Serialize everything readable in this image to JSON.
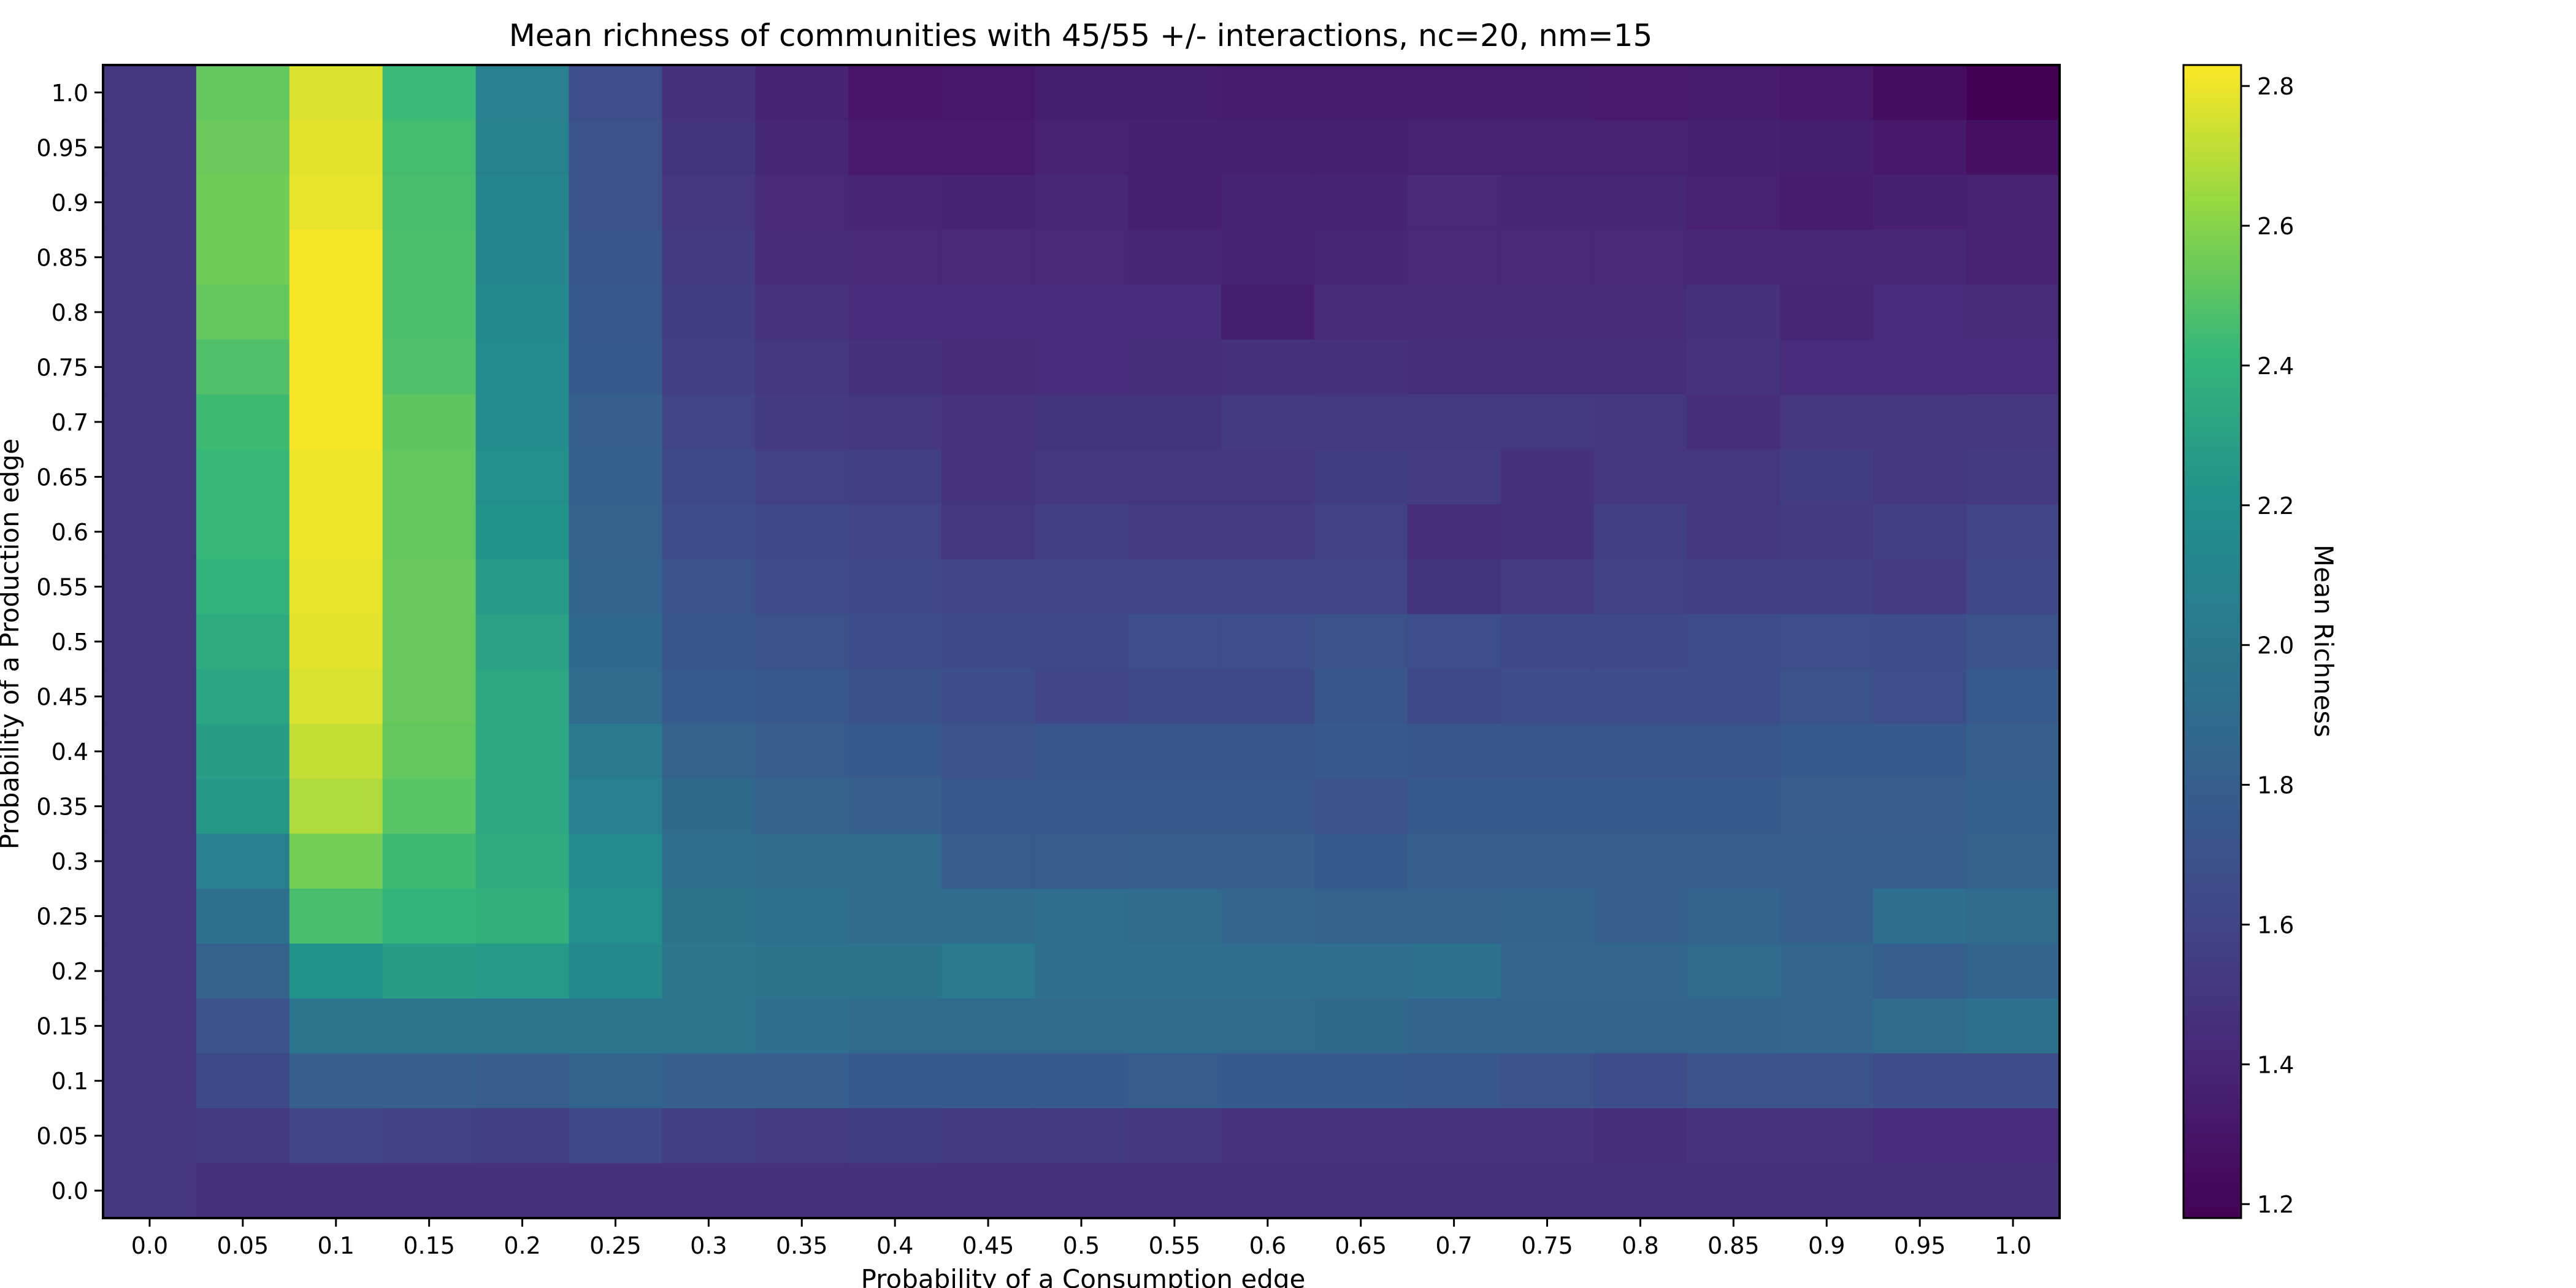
{
  "chart_data": {
    "type": "heatmap",
    "title": "Mean richness of communities with 45/55 +/- interactions, nc=20, nm=15",
    "xlabel": "Probability of a Consumption edge",
    "ylabel": "Probability of a Production edge",
    "x_categories": [
      "0.0",
      "0.05",
      "0.1",
      "0.15",
      "0.2",
      "0.25",
      "0.3",
      "0.35",
      "0.4",
      "0.45",
      "0.5",
      "0.55",
      "0.6",
      "0.65",
      "0.7",
      "0.75",
      "0.8",
      "0.85",
      "0.9",
      "0.95",
      "1.0"
    ],
    "y_categories": [
      "1.0",
      "0.95",
      "0.9",
      "0.85",
      "0.8",
      "0.75",
      "0.7",
      "0.65",
      "0.6",
      "0.55",
      "0.5",
      "0.45",
      "0.4",
      "0.35",
      "0.3",
      "0.25",
      "0.2",
      "0.15",
      "0.1",
      "0.05",
      "0.0"
    ],
    "values": [
      [
        1.5,
        2.52,
        2.77,
        2.43,
        2.06,
        1.68,
        1.47,
        1.38,
        1.3,
        1.31,
        1.35,
        1.35,
        1.34,
        1.34,
        1.34,
        1.34,
        1.33,
        1.34,
        1.31,
        1.25,
        1.18
      ],
      [
        1.5,
        2.54,
        2.78,
        2.45,
        2.08,
        1.7,
        1.49,
        1.4,
        1.33,
        1.33,
        1.37,
        1.36,
        1.36,
        1.36,
        1.37,
        1.37,
        1.37,
        1.36,
        1.35,
        1.32,
        1.27
      ],
      [
        1.5,
        2.55,
        2.79,
        2.46,
        2.1,
        1.71,
        1.51,
        1.42,
        1.39,
        1.38,
        1.41,
        1.36,
        1.38,
        1.38,
        1.42,
        1.4,
        1.4,
        1.37,
        1.34,
        1.36,
        1.37
      ],
      [
        1.5,
        2.55,
        2.82,
        2.47,
        2.12,
        1.73,
        1.53,
        1.43,
        1.42,
        1.42,
        1.42,
        1.4,
        1.38,
        1.4,
        1.42,
        1.42,
        1.42,
        1.41,
        1.41,
        1.41,
        1.37
      ],
      [
        1.5,
        2.52,
        2.82,
        2.47,
        2.14,
        1.74,
        1.55,
        1.48,
        1.44,
        1.44,
        1.44,
        1.44,
        1.35,
        1.43,
        1.43,
        1.43,
        1.43,
        1.47,
        1.4,
        1.44,
        1.43
      ],
      [
        1.5,
        2.48,
        2.82,
        2.48,
        2.16,
        1.76,
        1.56,
        1.5,
        1.47,
        1.43,
        1.44,
        1.46,
        1.47,
        1.47,
        1.46,
        1.46,
        1.46,
        1.48,
        1.44,
        1.44,
        1.44
      ],
      [
        1.5,
        2.44,
        2.82,
        2.51,
        2.18,
        1.8,
        1.6,
        1.53,
        1.5,
        1.48,
        1.49,
        1.49,
        1.53,
        1.52,
        1.52,
        1.52,
        1.51,
        1.45,
        1.5,
        1.5,
        1.51
      ],
      [
        1.5,
        2.42,
        2.8,
        2.52,
        2.2,
        1.81,
        1.64,
        1.57,
        1.56,
        1.48,
        1.51,
        1.51,
        1.51,
        1.55,
        1.54,
        1.47,
        1.51,
        1.51,
        1.55,
        1.51,
        1.53
      ],
      [
        1.5,
        2.42,
        2.8,
        2.52,
        2.22,
        1.82,
        1.67,
        1.62,
        1.59,
        1.5,
        1.56,
        1.54,
        1.54,
        1.58,
        1.45,
        1.47,
        1.56,
        1.5,
        1.53,
        1.56,
        1.59
      ],
      [
        1.5,
        2.39,
        2.79,
        2.53,
        2.26,
        1.84,
        1.7,
        1.65,
        1.62,
        1.59,
        1.61,
        1.61,
        1.61,
        1.61,
        1.49,
        1.54,
        1.58,
        1.56,
        1.56,
        1.54,
        1.63
      ],
      [
        1.5,
        2.36,
        2.78,
        2.53,
        2.3,
        1.87,
        1.73,
        1.7,
        1.66,
        1.64,
        1.62,
        1.68,
        1.68,
        1.7,
        1.68,
        1.62,
        1.62,
        1.66,
        1.68,
        1.66,
        1.7
      ],
      [
        1.5,
        2.32,
        2.76,
        2.53,
        2.33,
        1.9,
        1.77,
        1.74,
        1.69,
        1.67,
        1.61,
        1.64,
        1.64,
        1.73,
        1.64,
        1.66,
        1.66,
        1.66,
        1.7,
        1.68,
        1.77
      ],
      [
        1.5,
        2.28,
        2.72,
        2.52,
        2.33,
        2.02,
        1.82,
        1.78,
        1.76,
        1.7,
        1.72,
        1.72,
        1.72,
        1.75,
        1.72,
        1.72,
        1.72,
        1.72,
        1.76,
        1.76,
        1.8
      ],
      [
        1.5,
        2.25,
        2.68,
        2.5,
        2.33,
        2.06,
        1.88,
        1.82,
        1.8,
        1.74,
        1.74,
        1.74,
        1.74,
        1.7,
        1.76,
        1.76,
        1.76,
        1.76,
        1.78,
        1.78,
        1.81
      ],
      [
        1.5,
        2.06,
        2.56,
        2.44,
        2.36,
        2.16,
        1.92,
        1.9,
        1.9,
        1.78,
        1.78,
        1.8,
        1.8,
        1.76,
        1.8,
        1.8,
        1.8,
        1.8,
        1.8,
        1.8,
        1.82
      ],
      [
        1.5,
        1.93,
        2.46,
        2.4,
        2.38,
        2.2,
        1.96,
        1.94,
        1.9,
        1.9,
        1.91,
        1.89,
        1.86,
        1.82,
        1.82,
        1.84,
        1.8,
        1.84,
        1.8,
        1.92,
        1.9
      ],
      [
        1.5,
        1.82,
        2.22,
        2.28,
        2.26,
        2.14,
        2.0,
        1.96,
        1.96,
        2.02,
        1.92,
        1.92,
        1.92,
        1.92,
        1.94,
        1.86,
        1.86,
        1.9,
        1.86,
        1.8,
        1.84
      ],
      [
        1.5,
        1.7,
        1.98,
        1.98,
        1.98,
        1.98,
        1.98,
        1.92,
        1.9,
        1.9,
        1.9,
        1.9,
        1.9,
        1.88,
        1.84,
        1.84,
        1.84,
        1.84,
        1.86,
        1.9,
        1.94
      ],
      [
        1.5,
        1.64,
        1.8,
        1.8,
        1.78,
        1.84,
        1.8,
        1.8,
        1.76,
        1.76,
        1.76,
        1.78,
        1.76,
        1.76,
        1.74,
        1.7,
        1.66,
        1.7,
        1.7,
        1.66,
        1.66
      ],
      [
        1.5,
        1.52,
        1.6,
        1.58,
        1.56,
        1.62,
        1.56,
        1.54,
        1.55,
        1.52,
        1.52,
        1.5,
        1.48,
        1.48,
        1.48,
        1.48,
        1.46,
        1.48,
        1.48,
        1.44,
        1.44
      ],
      [
        1.5,
        1.47,
        1.47,
        1.47,
        1.47,
        1.47,
        1.47,
        1.47,
        1.47,
        1.47,
        1.47,
        1.47,
        1.47,
        1.47,
        1.47,
        1.47,
        1.47,
        1.47,
        1.47,
        1.47,
        1.47
      ]
    ],
    "colormap": "viridis",
    "vmin": 1.18,
    "vmax": 2.83,
    "colorbar": {
      "label": "Mean Richness",
      "ticks": [
        "1.2",
        "1.4",
        "1.6",
        "1.8",
        "2.0",
        "2.2",
        "2.4",
        "2.6",
        "2.8"
      ]
    }
  }
}
